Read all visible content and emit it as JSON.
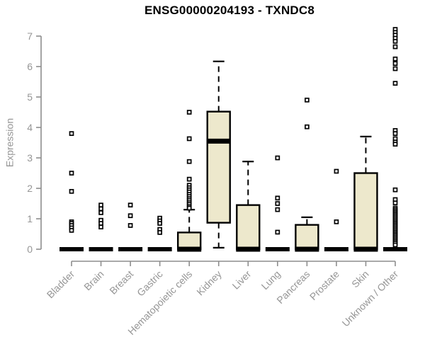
{
  "colors": {
    "background": "#FFFFFF",
    "box_fill": "#EDE8CC",
    "box_stroke": "#000000",
    "median_color": "#000000",
    "whisker_color": "#000000",
    "outlier_color": "#000000",
    "axis_line": "#8E8E8E",
    "tick_label": "#969696",
    "title_color": "#000000"
  },
  "chart_data": {
    "type": "boxplot",
    "title": "ENSG00000204193 - TXNDC8",
    "xlabel": "",
    "ylabel": "Expression",
    "ylim": [
      0,
      7.3
    ],
    "y_ticks": [
      0,
      1,
      2,
      3,
      4,
      5,
      6,
      7
    ],
    "grid": false,
    "legend": "none",
    "categories": [
      "Bladder",
      "Brain",
      "Breast",
      "Gastric",
      "Hematopoietic cells",
      "Kidney",
      "Liver",
      "Lung",
      "Pancreas",
      "Prostate",
      "Skin",
      "Unknown / Other"
    ],
    "series": [
      {
        "name": "Bladder",
        "q1": 0,
        "median": 0,
        "q3": 0,
        "whisker_low": 0,
        "whisker_high": 0,
        "outliers": [
          3.8,
          2.5,
          1.9,
          0.9,
          0.85,
          0.78,
          0.7,
          0.62
        ]
      },
      {
        "name": "Brain",
        "q1": 0,
        "median": 0,
        "q3": 0,
        "whisker_low": 0,
        "whisker_high": 0,
        "outliers": [
          1.45,
          1.33,
          1.2,
          0.95,
          0.85,
          0.73
        ]
      },
      {
        "name": "Breast",
        "q1": 0,
        "median": 0,
        "q3": 0,
        "whisker_low": 0,
        "whisker_high": 0,
        "outliers": [
          1.45,
          1.1,
          0.78
        ]
      },
      {
        "name": "Gastric",
        "q1": 0,
        "median": 0,
        "q3": 0,
        "whisker_low": 0,
        "whisker_high": 0,
        "outliers": [
          1.02,
          0.93,
          0.85,
          0.65,
          0.55
        ]
      },
      {
        "name": "Hematopoietic cells",
        "q1": 0,
        "median": 0,
        "q3": 0.55,
        "whisker_low": 0,
        "whisker_high": 1.3,
        "outliers": [
          4.5,
          3.63,
          2.88,
          2.3,
          2.1,
          2.02,
          1.95,
          1.88,
          1.8,
          1.73,
          1.66,
          1.6,
          1.53,
          1.47,
          1.4,
          1.35
        ]
      },
      {
        "name": "Kidney",
        "q1": 0.87,
        "median": 3.55,
        "q3": 4.52,
        "whisker_low": 0.05,
        "whisker_high": 6.17,
        "outliers": []
      },
      {
        "name": "Liver",
        "q1": 0,
        "median": 0,
        "q3": 1.45,
        "whisker_low": 0,
        "whisker_high": 2.88,
        "outliers": []
      },
      {
        "name": "Lung",
        "q1": 0,
        "median": 0,
        "q3": 0,
        "whisker_low": 0,
        "whisker_high": 0,
        "outliers": [
          3.0,
          1.68,
          1.5,
          1.3,
          0.56
        ]
      },
      {
        "name": "Pancreas",
        "q1": 0,
        "median": 0,
        "q3": 0.8,
        "whisker_low": 0,
        "whisker_high": 1.05,
        "outliers": [
          4.9,
          4.02
        ]
      },
      {
        "name": "Prostate",
        "q1": 0,
        "median": 0,
        "q3": 0,
        "whisker_low": 0,
        "whisker_high": 0,
        "outliers": [
          2.56,
          0.9
        ]
      },
      {
        "name": "Skin",
        "q1": 0,
        "median": 0,
        "q3": 2.5,
        "whisker_low": 0,
        "whisker_high": 3.7,
        "outliers": []
      },
      {
        "name": "Unknown / Other",
        "q1": 0,
        "median": 0,
        "q3": 0,
        "whisker_low": 0,
        "whisker_high": 0,
        "outliers": [
          7.22,
          7.12,
          7.03,
          6.93,
          6.83,
          6.65,
          6.25,
          6.1,
          5.93,
          5.45,
          3.9,
          3.8,
          3.63,
          3.52,
          3.45,
          1.95,
          1.63,
          1.52,
          1.35,
          1.3,
          1.25,
          1.2,
          1.15,
          1.1,
          1.05,
          1.0,
          0.95,
          0.9,
          0.85,
          0.8,
          0.75,
          0.7,
          0.65,
          0.6,
          0.55,
          0.5,
          0.45,
          0.4,
          0.35,
          0.3,
          0.25,
          0.2,
          0.14
        ]
      }
    ]
  }
}
